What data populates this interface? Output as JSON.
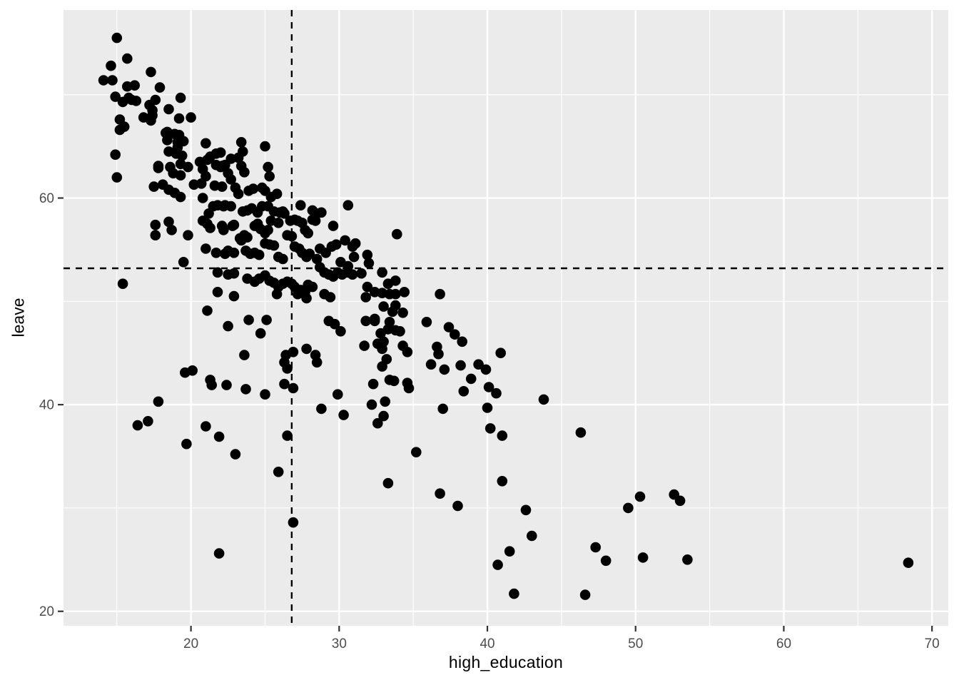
{
  "chart_data": {
    "type": "scatter",
    "title": "",
    "xlabel": "high_education",
    "ylabel": "leave",
    "xlim": [
      11.4,
      71.1
    ],
    "ylim": [
      18.6,
      78.2
    ],
    "x_major_ticks": [
      20,
      30,
      40,
      50,
      60,
      70
    ],
    "x_minor_ticks": [
      15,
      25,
      35,
      45,
      55,
      65
    ],
    "y_major_ticks": [
      20,
      40,
      60
    ],
    "y_minor_ticks": [
      30,
      50,
      70
    ],
    "grid": "major-and-minor, white on grey panel",
    "legend_position": "none",
    "reference_lines": [
      {
        "orientation": "vertical",
        "x": 26.8,
        "style": "dashed",
        "color": "#000000"
      },
      {
        "orientation": "horizontal",
        "y": 53.2,
        "style": "dashed",
        "color": "#000000"
      }
    ],
    "points": [
      [
        15.0,
        75.5
      ],
      [
        15.7,
        73.5
      ],
      [
        14.6,
        72.8
      ],
      [
        14.1,
        71.4
      ],
      [
        14.7,
        71.4
      ],
      [
        17.3,
        72.2
      ],
      [
        15.7,
        70.8
      ],
      [
        16.2,
        70.9
      ],
      [
        17.9,
        70.7
      ],
      [
        14.9,
        69.8
      ],
      [
        15.4,
        69.3
      ],
      [
        15.8,
        69.7
      ],
      [
        16.0,
        69.5
      ],
      [
        16.3,
        69.4
      ],
      [
        19.3,
        69.7
      ],
      [
        17.6,
        69.5
      ],
      [
        17.2,
        69.0
      ],
      [
        17.4,
        68.5
      ],
      [
        17.4,
        68.0
      ],
      [
        16.8,
        67.8
      ],
      [
        17.3,
        67.5
      ],
      [
        18.5,
        68.6
      ],
      [
        15.2,
        67.6
      ],
      [
        15.5,
        66.9
      ],
      [
        15.2,
        66.6
      ],
      [
        19.2,
        67.7
      ],
      [
        20.0,
        67.8
      ],
      [
        18.4,
        66.4
      ],
      [
        18.3,
        66.3
      ],
      [
        18.9,
        66.2
      ],
      [
        19.2,
        66.1
      ],
      [
        18.4,
        65.6
      ],
      [
        19.1,
        65.4
      ],
      [
        19.5,
        65.5
      ],
      [
        19.1,
        64.9
      ],
      [
        18.5,
        64.5
      ],
      [
        19.0,
        64.3
      ],
      [
        19.4,
        64.1
      ],
      [
        14.9,
        64.2
      ],
      [
        17.8,
        63.1
      ],
      [
        18.6,
        63.0
      ],
      [
        19.3,
        63.3
      ],
      [
        19.8,
        63.0
      ],
      [
        20.6,
        63.5
      ],
      [
        20.8,
        62.8
      ],
      [
        21.3,
        64.0
      ],
      [
        21.7,
        64.3
      ],
      [
        22.0,
        63.0
      ],
      [
        22.7,
        63.8
      ],
      [
        23.2,
        63.9
      ],
      [
        22.0,
        64.4
      ],
      [
        23.5,
        64.5
      ],
      [
        25.0,
        65.0
      ],
      [
        21.0,
        65.3
      ],
      [
        23.4,
        65.4
      ],
      [
        21.1,
        63.7
      ],
      [
        21.7,
        63.2
      ],
      [
        22.1,
        63.1
      ],
      [
        22.3,
        63.2
      ],
      [
        22.5,
        62.4
      ],
      [
        22.7,
        61.8
      ],
      [
        23.4,
        63.1
      ],
      [
        23.6,
        62.5
      ],
      [
        25.2,
        63.0
      ],
      [
        25.3,
        62.1
      ],
      [
        21.0,
        62.1
      ],
      [
        21.6,
        61.2
      ],
      [
        22.1,
        61.1
      ],
      [
        23.0,
        61.0
      ],
      [
        23.2,
        60.4
      ],
      [
        23.9,
        60.7
      ],
      [
        24.2,
        60.9
      ],
      [
        24.8,
        61.0
      ],
      [
        25.0,
        60.7
      ],
      [
        25.4,
        60.1
      ],
      [
        25.8,
        60.4
      ],
      [
        20.8,
        60.0
      ],
      [
        21.2,
        58.5
      ],
      [
        21.5,
        59.2
      ],
      [
        21.8,
        59.3
      ],
      [
        22.2,
        59.2
      ],
      [
        22.3,
        59.3
      ],
      [
        22.7,
        59.2
      ],
      [
        23.5,
        58.7
      ],
      [
        23.8,
        58.8
      ],
      [
        24.1,
        59.0
      ],
      [
        24.5,
        58.6
      ],
      [
        24.8,
        59.2
      ],
      [
        25.2,
        59.2
      ],
      [
        25.6,
        58.7
      ],
      [
        26.0,
        58.6
      ],
      [
        26.2,
        58.7
      ],
      [
        27.4,
        59.3
      ],
      [
        28.2,
        58.8
      ],
      [
        28.5,
        58.5
      ],
      [
        28.8,
        58.6
      ],
      [
        30.6,
        59.3
      ],
      [
        20.8,
        57.8
      ],
      [
        21.1,
        57.5
      ],
      [
        21.3,
        57.1
      ],
      [
        22.1,
        57.3
      ],
      [
        22.2,
        56.9
      ],
      [
        22.8,
        57.3
      ],
      [
        22.9,
        57.4
      ],
      [
        23.6,
        56.4
      ],
      [
        23.8,
        56.2
      ],
      [
        24.3,
        57.3
      ],
      [
        24.5,
        57.5
      ],
      [
        24.7,
        57.0
      ],
      [
        25.0,
        56.6
      ],
      [
        25.2,
        56.9
      ],
      [
        25.4,
        57.8
      ],
      [
        25.9,
        57.6
      ],
      [
        26.3,
        58.5
      ],
      [
        26.7,
        57.8
      ],
      [
        27.0,
        57.9
      ],
      [
        27.2,
        57.8
      ],
      [
        27.5,
        57.6
      ],
      [
        27.7,
        56.9
      ],
      [
        27.9,
        56.6
      ],
      [
        28.2,
        57.9
      ],
      [
        28.4,
        57.8
      ],
      [
        29.6,
        57.3
      ],
      [
        30.4,
        55.9
      ],
      [
        30.9,
        55.3
      ],
      [
        21.0,
        55.1
      ],
      [
        21.7,
        54.7
      ],
      [
        22.3,
        54.6
      ],
      [
        22.5,
        54.9
      ],
      [
        22.9,
        54.7
      ],
      [
        23.3,
        56.1
      ],
      [
        23.4,
        55.9
      ],
      [
        23.7,
        54.9
      ],
      [
        24.0,
        54.6
      ],
      [
        24.3,
        54.7
      ],
      [
        24.6,
        54.5
      ],
      [
        25.0,
        55.6
      ],
      [
        25.3,
        55.5
      ],
      [
        25.6,
        55.4
      ],
      [
        25.9,
        54.3
      ],
      [
        26.2,
        54.1
      ],
      [
        26.5,
        56.4
      ],
      [
        26.8,
        56.3
      ],
      [
        27.0,
        55.3
      ],
      [
        27.3,
        55.1
      ],
      [
        27.5,
        54.7
      ],
      [
        27.8,
        54.3
      ],
      [
        28.0,
        54.6
      ],
      [
        28.7,
        55.1
      ],
      [
        29.1,
        54.7
      ],
      [
        29.5,
        55.3
      ],
      [
        29.8,
        55.5
      ],
      [
        30.1,
        53.8
      ],
      [
        30.6,
        53.4
      ],
      [
        31.0,
        54.3
      ],
      [
        31.1,
        55.6
      ],
      [
        21.8,
        52.8
      ],
      [
        22.5,
        52.6
      ],
      [
        22.9,
        52.7
      ],
      [
        23.8,
        52.2
      ],
      [
        24.3,
        51.9
      ],
      [
        24.6,
        52.2
      ],
      [
        25.0,
        52.5
      ],
      [
        25.3,
        52.0
      ],
      [
        25.6,
        51.8
      ],
      [
        25.9,
        51.4
      ],
      [
        26.2,
        51.7
      ],
      [
        26.5,
        51.9
      ],
      [
        26.8,
        51.7
      ],
      [
        27.0,
        51.4
      ],
      [
        27.4,
        51.1
      ],
      [
        27.7,
        50.9
      ],
      [
        27.9,
        51.6
      ],
      [
        28.2,
        51.4
      ],
      [
        28.5,
        54.1
      ],
      [
        28.7,
        53.3
      ],
      [
        29.0,
        52.8
      ],
      [
        29.3,
        52.6
      ],
      [
        29.6,
        52.4
      ],
      [
        29.9,
        52.8
      ],
      [
        30.2,
        52.6
      ],
      [
        30.6,
        52.8
      ],
      [
        30.9,
        52.6
      ],
      [
        21.8,
        50.9
      ],
      [
        22.9,
        50.5
      ],
      [
        25.8,
        50.7
      ],
      [
        27.2,
        50.7
      ],
      [
        27.8,
        50.3
      ],
      [
        29.0,
        50.7
      ],
      [
        29.4,
        50.4
      ],
      [
        15.0,
        62.0
      ],
      [
        17.8,
        62.9
      ],
      [
        17.5,
        61.1
      ],
      [
        18.1,
        61.3
      ],
      [
        18.5,
        60.8
      ],
      [
        18.8,
        62.4
      ],
      [
        19.3,
        62.2
      ],
      [
        18.9,
        60.5
      ],
      [
        19.3,
        60.1
      ],
      [
        20.2,
        61.3
      ],
      [
        20.7,
        61.4
      ],
      [
        17.6,
        57.4
      ],
      [
        17.6,
        56.4
      ],
      [
        18.5,
        57.7
      ],
      [
        18.7,
        56.9
      ],
      [
        19.8,
        56.4
      ],
      [
        19.5,
        53.8
      ],
      [
        15.4,
        51.7
      ],
      [
        21.1,
        49.1
      ],
      [
        22.5,
        47.6
      ],
      [
        33.9,
        56.5
      ],
      [
        31.9,
        54.5
      ],
      [
        32.0,
        53.7
      ],
      [
        31.5,
        52.7
      ],
      [
        32.9,
        52.8
      ],
      [
        33.3,
        51.7
      ],
      [
        33.8,
        52.0
      ],
      [
        31.9,
        51.4
      ],
      [
        31.8,
        50.4
      ],
      [
        32.4,
        50.9
      ],
      [
        32.9,
        50.8
      ],
      [
        33.4,
        50.7
      ],
      [
        33.8,
        50.7
      ],
      [
        34.4,
        50.9
      ],
      [
        36.8,
        50.7
      ],
      [
        33.0,
        49.5
      ],
      [
        33.8,
        49.6
      ],
      [
        32.4,
        48.3
      ],
      [
        33.6,
        49.0
      ],
      [
        34.3,
        48.9
      ],
      [
        31.8,
        48.1
      ],
      [
        32.4,
        48.1
      ],
      [
        33.4,
        48.0
      ],
      [
        35.9,
        48.0
      ],
      [
        33.3,
        47.3
      ],
      [
        33.8,
        47.2
      ],
      [
        34.1,
        47.1
      ],
      [
        32.8,
        46.9
      ],
      [
        31.7,
        45.7
      ],
      [
        32.6,
        45.9
      ],
      [
        33.0,
        46.1
      ],
      [
        34.3,
        45.7
      ],
      [
        34.6,
        45.1
      ],
      [
        32.9,
        45.4
      ],
      [
        33.2,
        44.4
      ],
      [
        32.9,
        43.7
      ],
      [
        36.6,
        45.6
      ],
      [
        36.7,
        44.9
      ],
      [
        37.4,
        47.5
      ],
      [
        37.8,
        46.8
      ],
      [
        38.3,
        46.1
      ],
      [
        40.9,
        45.0
      ],
      [
        36.2,
        43.9
      ],
      [
        37.1,
        43.4
      ],
      [
        38.2,
        43.8
      ],
      [
        39.4,
        43.9
      ],
      [
        39.9,
        43.4
      ],
      [
        38.9,
        42.5
      ],
      [
        32.3,
        42.0
      ],
      [
        33.4,
        42.4
      ],
      [
        33.7,
        42.3
      ],
      [
        34.6,
        42.1
      ],
      [
        34.7,
        41.6
      ],
      [
        38.4,
        41.3
      ],
      [
        40.1,
        41.7
      ],
      [
        40.6,
        41.1
      ],
      [
        32.2,
        40.0
      ],
      [
        33.1,
        40.3
      ],
      [
        43.8,
        40.5
      ],
      [
        37.0,
        39.6
      ],
      [
        40.0,
        39.7
      ],
      [
        33.0,
        38.9
      ],
      [
        32.6,
        38.2
      ],
      [
        40.2,
        37.7
      ],
      [
        41.0,
        37.0
      ],
      [
        46.3,
        37.3
      ],
      [
        35.2,
        35.4
      ],
      [
        33.3,
        32.4
      ],
      [
        41.0,
        32.6
      ],
      [
        36.8,
        31.4
      ],
      [
        38.0,
        30.2
      ],
      [
        42.6,
        29.8
      ],
      [
        49.5,
        30.0
      ],
      [
        50.3,
        31.1
      ],
      [
        43.0,
        27.3
      ],
      [
        47.3,
        26.2
      ],
      [
        41.5,
        25.8
      ],
      [
        48.0,
        24.9
      ],
      [
        50.5,
        25.2
      ],
      [
        40.7,
        24.5
      ],
      [
        41.8,
        21.7
      ],
      [
        46.6,
        21.6
      ],
      [
        23.9,
        48.2
      ],
      [
        25.1,
        48.2
      ],
      [
        24.7,
        46.9
      ],
      [
        29.3,
        48.1
      ],
      [
        29.7,
        47.8
      ],
      [
        30.1,
        47.1
      ],
      [
        23.6,
        44.8
      ],
      [
        26.9,
        45.1
      ],
      [
        26.4,
        44.8
      ],
      [
        26.3,
        44.1
      ],
      [
        26.5,
        43.5
      ],
      [
        27.8,
        45.4
      ],
      [
        28.4,
        44.8
      ],
      [
        28.5,
        44.1
      ],
      [
        19.6,
        43.1
      ],
      [
        20.1,
        43.3
      ],
      [
        21.3,
        42.4
      ],
      [
        21.4,
        41.9
      ],
      [
        22.4,
        41.9
      ],
      [
        23.7,
        41.5
      ],
      [
        25.0,
        41.0
      ],
      [
        26.3,
        42.0
      ],
      [
        26.9,
        41.6
      ],
      [
        29.9,
        41.0
      ],
      [
        17.8,
        40.3
      ],
      [
        28.8,
        39.6
      ],
      [
        30.3,
        39.0
      ],
      [
        16.4,
        38.0
      ],
      [
        17.1,
        38.4
      ],
      [
        21.0,
        37.9
      ],
      [
        21.9,
        36.9
      ],
      [
        19.7,
        36.2
      ],
      [
        23.0,
        35.2
      ],
      [
        25.9,
        33.5
      ],
      [
        26.5,
        37.0
      ],
      [
        26.9,
        28.6
      ],
      [
        21.9,
        25.6
      ],
      [
        52.6,
        31.3
      ],
      [
        53.0,
        30.7
      ],
      [
        53.5,
        25.0
      ],
      [
        68.4,
        24.7
      ]
    ]
  },
  "style": {
    "panel_background": "#EBEBEB",
    "grid_color": "#FFFFFF",
    "point_color": "#000000",
    "tick_mark_color": "#333333",
    "tick_label_color": "#4d4d4d",
    "axis_title_color": "#000000",
    "outer_background": "#FFFFFF"
  }
}
